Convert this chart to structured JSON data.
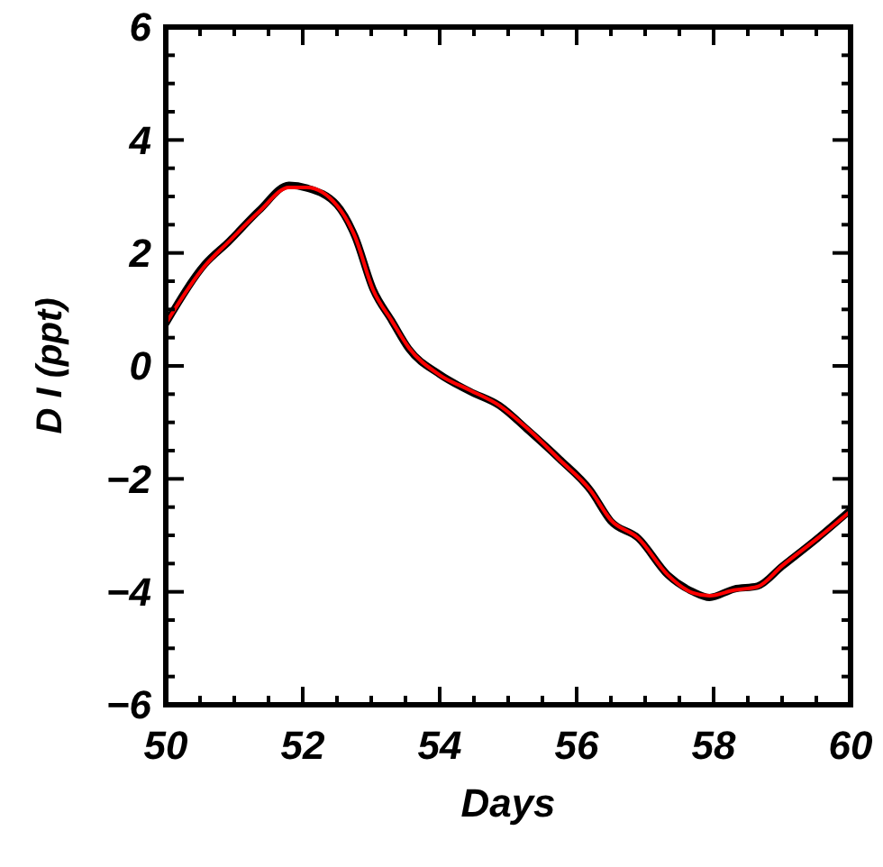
{
  "chart_data": {
    "type": "line",
    "xlabel": "Days",
    "ylabel": "D I (ppt)",
    "xlim": [
      50,
      60
    ],
    "ylim": [
      -6,
      6
    ],
    "xticks": [
      50,
      {
        "value": 50.5,
        "label": null
      },
      52,
      {
        "value": 51,
        "label": null
      },
      {
        "value": 51.5,
        "label": null
      },
      {
        "value": 52.5,
        "label": null
      },
      {
        "value": 53,
        "label": null
      },
      {
        "value": 53.5,
        "label": null
      },
      54,
      {
        "value": 54.5,
        "label": null
      },
      {
        "value": 55,
        "label": null
      },
      {
        "value": 55.5,
        "label": null
      },
      56,
      {
        "value": 56.5,
        "label": null
      },
      {
        "value": 57,
        "label": null
      },
      {
        "value": 57.5,
        "label": null
      },
      58,
      {
        "value": 58.5,
        "label": null
      },
      {
        "value": 59,
        "label": null
      },
      {
        "value": 59.5,
        "label": null
      },
      60
    ],
    "yticks": [
      -6,
      {
        "value": -5.5,
        "label": null
      },
      {
        "value": -5,
        "label": null
      },
      {
        "value": -4.5,
        "label": null
      },
      -4,
      {
        "value": -3.5,
        "label": null
      },
      {
        "value": -3,
        "label": null
      },
      {
        "value": -2.5,
        "label": null
      },
      -2,
      {
        "value": -1.5,
        "label": null
      },
      {
        "value": -1,
        "label": null
      },
      {
        "value": -0.5,
        "label": null
      },
      0,
      {
        "value": 0.5,
        "label": null
      },
      {
        "value": 1,
        "label": null
      },
      {
        "value": 1.5,
        "label": null
      },
      2,
      {
        "value": 2.5,
        "label": null
      },
      {
        "value": 3,
        "label": null
      },
      {
        "value": 3.5,
        "label": null
      },
      4,
      {
        "value": 4.5,
        "label": null
      },
      {
        "value": 5,
        "label": null
      },
      {
        "value": 5.5,
        "label": null
      },
      6
    ],
    "grid": false,
    "marker": "none",
    "line_style": "solid",
    "series": [
      {
        "color": "#000000",
        "x": [
          50,
          50.57,
          50.92,
          51.36,
          51.8,
          52.06,
          52.5,
          52.76,
          53.03,
          53.3,
          53.55,
          54.0,
          54.44,
          54.87,
          55.3,
          55.75,
          56.2,
          56.5,
          56.9,
          57.33,
          57.7,
          57.94,
          58.3,
          58.64,
          59.0,
          59.52,
          60
        ],
        "values": [
          0.75,
          1.8,
          2.2,
          2.75,
          3.2,
          3.15,
          2.85,
          2.3,
          1.35,
          0.8,
          0.3,
          -0.15,
          -0.45,
          -0.7,
          -1.15,
          -1.65,
          -2.2,
          -2.75,
          -3.05,
          -3.7,
          -4.0,
          -4.1,
          -3.95,
          -3.9,
          -3.55,
          -3.05,
          -2.55
        ]
      },
      {
        "color": "#ff0000",
        "x": [
          50,
          50.57,
          50.92,
          51.36,
          51.8,
          52.06,
          52.5,
          52.76,
          53.03,
          53.3,
          53.55,
          54.0,
          54.44,
          54.87,
          55.3,
          55.75,
          56.2,
          56.5,
          56.9,
          57.33,
          57.7,
          57.94,
          58.3,
          58.64,
          59.0,
          59.52,
          60
        ],
        "values": [
          0.75,
          1.77,
          2.2,
          2.73,
          3.16,
          3.16,
          2.84,
          2.3,
          1.34,
          0.8,
          0.32,
          -0.16,
          -0.43,
          -0.7,
          -1.13,
          -1.66,
          -2.2,
          -2.73,
          -3.05,
          -3.7,
          -4.02,
          -4.07,
          -3.97,
          -3.91,
          -3.54,
          -3.05,
          -2.57
        ]
      }
    ]
  }
}
